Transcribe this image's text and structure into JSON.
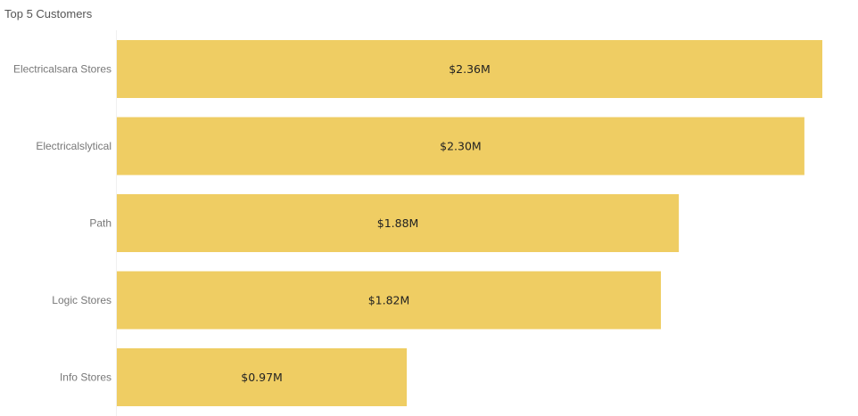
{
  "chart_data": {
    "type": "bar",
    "orientation": "horizontal",
    "title": "Top 5 Customers",
    "categories": [
      "Electricalsara Stores",
      "Electricalslytical",
      "Path",
      "Logic Stores",
      "Info Stores"
    ],
    "values": [
      2.36,
      2.3,
      1.88,
      1.82,
      0.97
    ],
    "value_labels": [
      "$2.36M",
      "$2.30M",
      "$1.88M",
      "$1.82M",
      "$0.97M"
    ],
    "unit": "$M",
    "xlim": [
      0,
      2.36
    ],
    "grid": false,
    "legend": "none",
    "bar_color": "#EFCD63"
  }
}
